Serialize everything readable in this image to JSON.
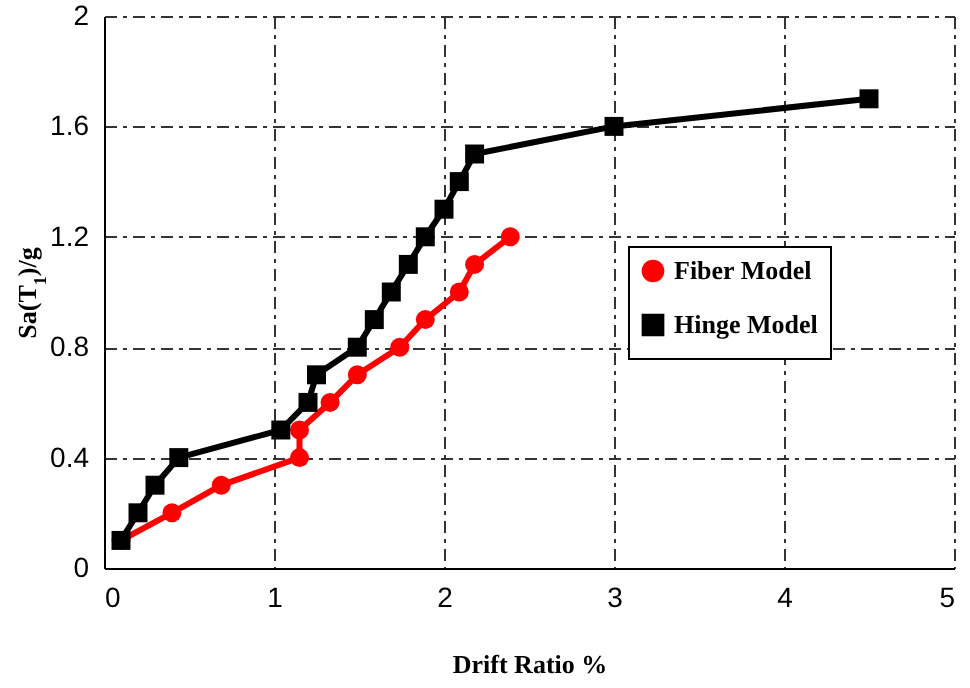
{
  "chart_data": {
    "type": "line",
    "xlabel": "Drift Ratio %",
    "ylabel": "Sa(T$_{1}$)/g",
    "xlim": [
      0,
      5
    ],
    "xticks": [
      0,
      1,
      2,
      3,
      4,
      5
    ],
    "ylim": [
      0,
      2
    ],
    "yticks": [
      0,
      0.4,
      0.8,
      1.2,
      1.6,
      2
    ],
    "grid": true,
    "legend": "right",
    "line_style": "solid",
    "series": [
      {
        "name": "Fiber Model",
        "color": "#ff0000",
        "marker": "circle",
        "x": [
          0.1,
          0.4,
          0.69,
          1.15,
          1.15,
          1.33,
          1.49,
          1.74,
          1.89,
          2.09,
          2.18,
          2.39
        ],
        "values": [
          0.1,
          0.2,
          0.3,
          0.4,
          0.5,
          0.6,
          0.7,
          0.8,
          0.9,
          1.0,
          1.1,
          1.2
        ]
      },
      {
        "name": "Hinge Model",
        "color": "#000000",
        "marker": "square",
        "x": [
          0.1,
          0.2,
          0.3,
          0.44,
          1.04,
          1.2,
          1.25,
          1.49,
          1.59,
          1.69,
          1.79,
          1.89,
          2.0,
          2.09,
          2.18,
          3,
          4.5
        ],
        "values": [
          0.1,
          0.2,
          0.3,
          0.4,
          0.5,
          0.6,
          0.7,
          0.8,
          0.9,
          1.0,
          1.1,
          1.2,
          1.3,
          1.4,
          1.5,
          1.6,
          1.7
        ]
      }
    ]
  }
}
